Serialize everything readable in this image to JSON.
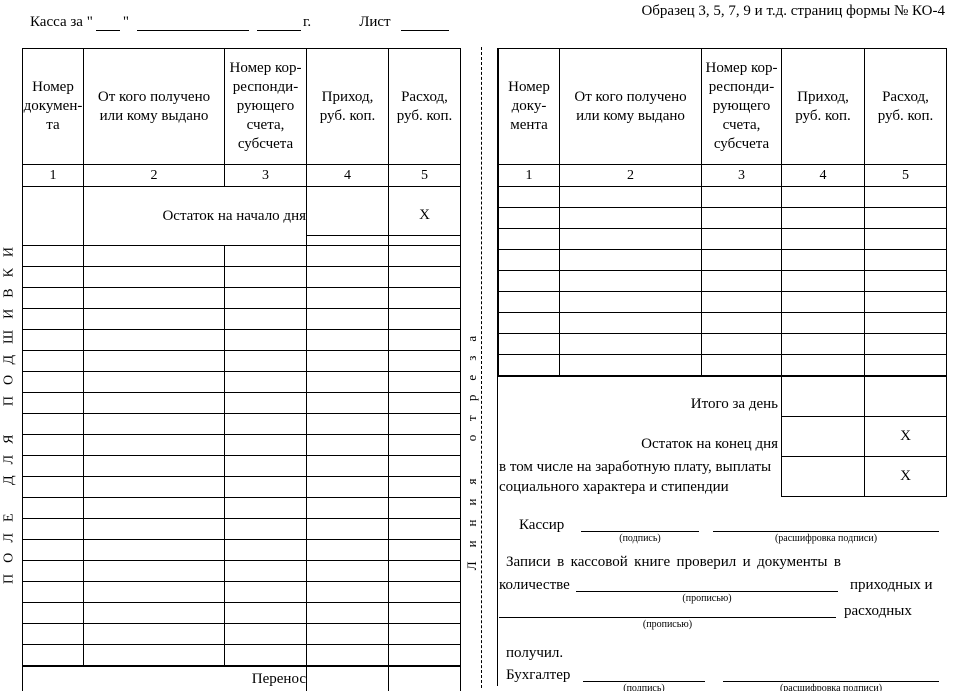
{
  "page_header": {
    "sample_note": "Образец 3, 5, 7, 9 и т.д. страниц формы № КО-4",
    "cash_for_label": "Касса за",
    "open_quote": "\"",
    "close_quote": "\"",
    "year_label": "г.",
    "sheet_label": "Лист"
  },
  "margins": {
    "binding_text": "ПОЛЕ ДЛЯ ПОДШИВКИ",
    "cut_line_text": "Линия отреза"
  },
  "left_table": {
    "headers": {
      "doc_number": "Номер\nдокумен-\nта",
      "from_whom": "От кого получено\nили кому выдано",
      "corresponding_account": "Номер кор-\nреспонди-\nрующего\nсчета,\nсубсчета",
      "income": "Приход,\nруб. коп.",
      "expense": "Расход,\nруб. коп."
    },
    "column_numbers": [
      "1",
      "2",
      "3",
      "4",
      "5"
    ],
    "opening_balance_label": "Остаток на начало дня",
    "opening_balance_expense_mark": "X",
    "empty_row_count": 20,
    "carryover_label": "Перенос"
  },
  "right_table": {
    "headers": {
      "doc_number": "Номер\nдоку-\nмента",
      "from_whom": "От кого получено\nили кому выдано",
      "corresponding_account": "Номер кор-\nреспонди-\nрующего\nсчета,\nсубсчета",
      "income": "Приход,\nруб. коп.",
      "expense": "Расход,\nруб. коп."
    },
    "column_numbers": [
      "1",
      "2",
      "3",
      "4",
      "5"
    ],
    "empty_row_count": 9,
    "day_total_label": "Итого за день",
    "closing_balance_label": "Остаток на конец дня",
    "closing_balance_expense_mark": "X",
    "including_label": "в том числе на заработную плату, выплаты\nсоциального характера и стипендии",
    "including_expense_mark": "X"
  },
  "signature_block": {
    "cashier_label": "Кассир",
    "signature_caption": "(подпись)",
    "signature_transcript_caption": "(расшифровка подписи)",
    "verification_text": "Записи в кассовой книге проверил и документы в",
    "quantity_label": "количестве",
    "in_words_caption": "(прописью)",
    "incoming_suffix": "приходных и",
    "outgoing_suffix": "расходных",
    "received_label": "получил.",
    "accountant_label": "Бухгалтер"
  }
}
